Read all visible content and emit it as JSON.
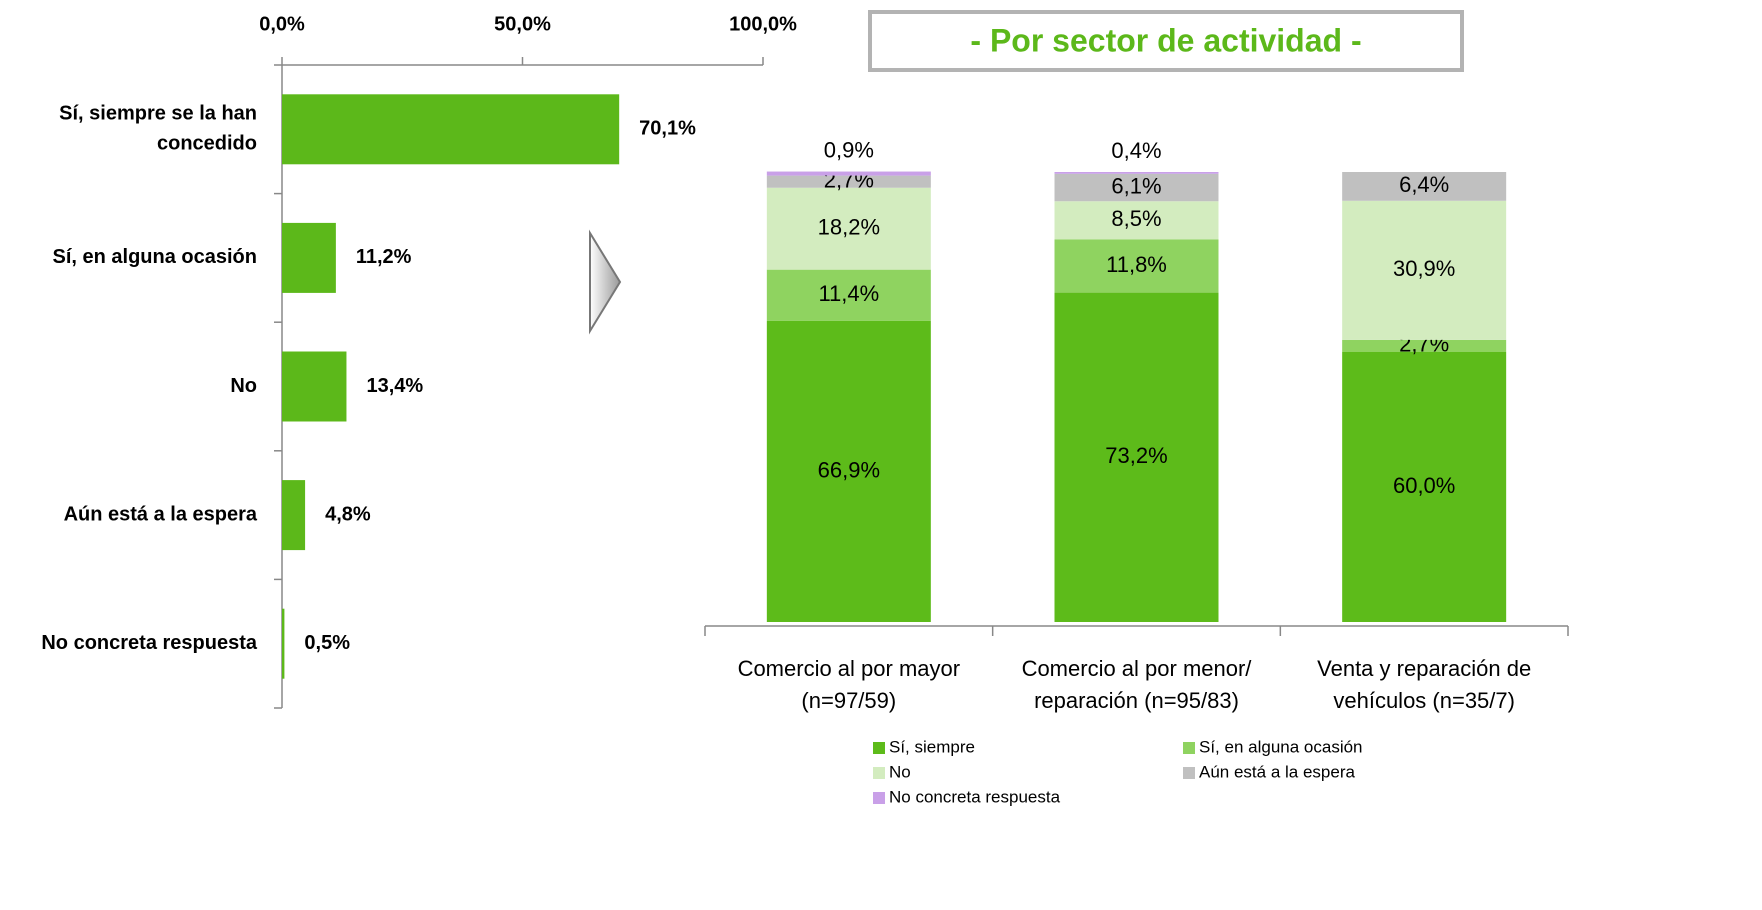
{
  "chart_data": [
    {
      "type": "hbar",
      "categories": [
        [
          "Sí, siempre se la han",
          "concedido"
        ],
        [
          "Sí, en alguna ocasión"
        ],
        [
          "No"
        ],
        [
          "Aún está a la espera"
        ],
        [
          "No concreta respuesta"
        ]
      ],
      "values": [
        70.1,
        11.2,
        13.4,
        4.8,
        0.5
      ],
      "value_labels": [
        "70,1%",
        "11,2%",
        "13,4%",
        "4,8%",
        "0,5%"
      ],
      "color": "#5cb81a",
      "xlim": [
        0,
        100
      ],
      "xticks": [
        {
          "value": 0,
          "label": "0,0%"
        },
        {
          "value": 50,
          "label": "50,0%"
        },
        {
          "value": 100,
          "label": "100,0%"
        }
      ]
    },
    {
      "type": "stacked_bar",
      "title": "- Por sector de actividad -",
      "categories": [
        [
          "Comercio al por mayor",
          "(n=97/59)"
        ],
        [
          "Comercio al por menor/",
          "reparación (n=95/83)"
        ],
        [
          "Venta y reparación de",
          "vehículos (n=35/7)"
        ]
      ],
      "ylim": [
        0,
        100
      ],
      "series": [
        {
          "name": "Sí, siempre",
          "color": "#5dbb1a",
          "values": [
            66.9,
            73.2,
            60.0
          ],
          "value_labels": [
            "66,9%",
            "73,2%",
            "60,0%"
          ]
        },
        {
          "name": "Sí, en alguna ocasión",
          "color": "#8fd360",
          "values": [
            11.4,
            11.8,
            2.7
          ],
          "value_labels": [
            "11,4%",
            "11,8%",
            "2,7%"
          ]
        },
        {
          "name": "No",
          "color": "#d3ecbf",
          "values": [
            18.2,
            8.5,
            30.9
          ],
          "value_labels": [
            "18,2%",
            "8,5%",
            "30,9%"
          ]
        },
        {
          "name": "Aún está a la espera",
          "color": "#c0c0c0",
          "values": [
            2.7,
            6.1,
            6.4
          ],
          "value_labels": [
            "2,7%",
            "6,1%",
            "6,4%"
          ]
        },
        {
          "name": "No concreta respuesta",
          "color": "#c9a0e8",
          "values": [
            0.9,
            0.4,
            null
          ],
          "value_labels": [
            "0,9%",
            "0,4%",
            null
          ]
        }
      ]
    }
  ]
}
